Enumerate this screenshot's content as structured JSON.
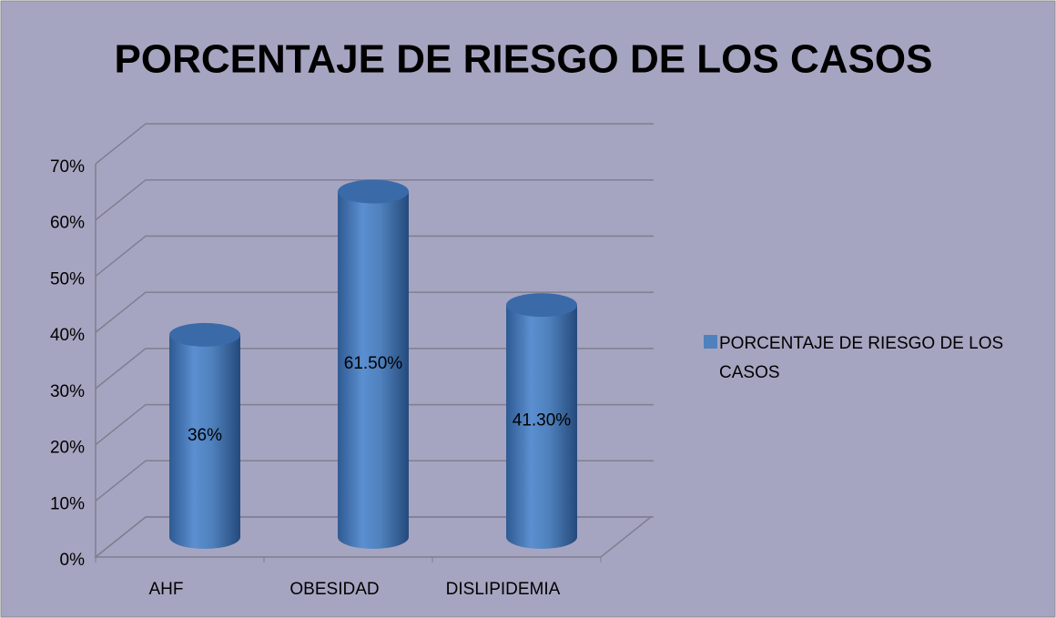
{
  "chart_data": {
    "type": "bar3d",
    "title": "PORCENTAJE DE RIESGO DE LOS CASOS",
    "categories": [
      "AHF",
      "OBESIDAD",
      "DISLIPIDEMIA"
    ],
    "series": [
      {
        "name": "PORCENTAJE DE RIESGO DE LOS CASOS",
        "color": "#4f81bd",
        "values": [
          36,
          61.5,
          41.3
        ],
        "value_labels": [
          "36%",
          "61.50%",
          "41.30%"
        ]
      }
    ],
    "ylim": [
      0,
      70
    ],
    "yticks": [
      {
        "value": 0,
        "label": "0%"
      },
      {
        "value": 10,
        "label": "10%"
      },
      {
        "value": 20,
        "label": "20%"
      },
      {
        "value": 30,
        "label": "30%"
      },
      {
        "value": 40,
        "label": "40%"
      },
      {
        "value": 50,
        "label": "50%"
      },
      {
        "value": 60,
        "label": "60%"
      },
      {
        "value": 70,
        "label": "70%"
      }
    ],
    "grid": true,
    "legend": "right"
  }
}
